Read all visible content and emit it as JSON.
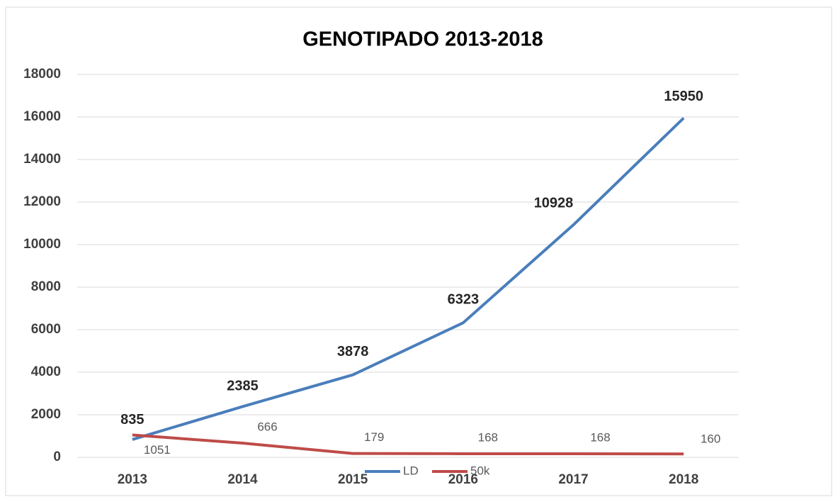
{
  "chart_data": {
    "type": "line",
    "title": "GENOTIPADO 2013-2018",
    "categories": [
      "2013",
      "2014",
      "2015",
      "2016",
      "2017",
      "2018"
    ],
    "series": [
      {
        "name": "LD",
        "color": "#4a7ebb",
        "values": [
          835,
          2385,
          3878,
          6323,
          10928,
          15950
        ]
      },
      {
        "name": "50k",
        "color": "#be4b48",
        "values": [
          1051,
          666,
          179,
          168,
          168,
          160
        ]
      }
    ],
    "ylim": [
      0,
      18000
    ],
    "yticks": [
      0,
      2000,
      4000,
      6000,
      8000,
      10000,
      12000,
      14000,
      16000,
      18000
    ],
    "grid": true,
    "legend": "bottom"
  }
}
